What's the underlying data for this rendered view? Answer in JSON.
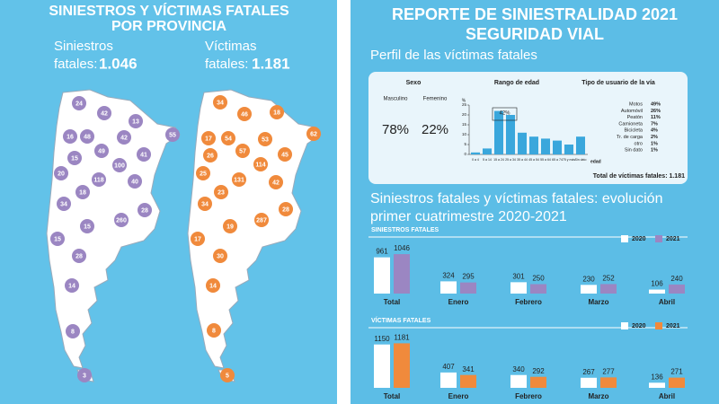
{
  "left": {
    "title_line1": "SINIESTROS Y VÍCTIMAS FATALES",
    "title_line2": "POR PROVINCIA",
    "siniestros_label_1": "Siniestros",
    "siniestros_label_2": "fatales:",
    "siniestros_total": "1.046",
    "victimas_label_1": "Víctimas",
    "victimas_label_2": "fatales:",
    "victimas_total": "1.181",
    "siniestros_map": {
      "color": "#9b86c2",
      "values": [
        24,
        42,
        13,
        16,
        48,
        42,
        55,
        15,
        49,
        41,
        20,
        100,
        118,
        40,
        18,
        34,
        28,
        15,
        260,
        15,
        28,
        14,
        8,
        3
      ]
    },
    "victimas_map": {
      "color": "#f08a3c",
      "values": [
        34,
        46,
        18,
        62,
        17,
        54,
        53,
        26,
        57,
        45,
        114,
        25,
        42,
        131,
        23,
        34,
        28,
        287,
        19,
        17,
        30,
        14,
        8,
        5
      ]
    }
  },
  "right": {
    "title_line1": "REPORTE DE SINIESTRALIDAD 2021",
    "title_line2": "SEGURIDAD VIAL",
    "perfil": "Perfil de las víctimas fatales",
    "sexo": {
      "title": "Sexo",
      "labels": [
        "Masculino",
        "Femenino"
      ],
      "values": [
        78,
        22
      ],
      "value_labels": [
        "78%",
        "22%"
      ]
    },
    "usuario": {
      "title": "Tipo de usuario de la vía",
      "categories": [
        "Motos",
        "Automóvil",
        "Peatón",
        "Camioneta",
        "Bicicleta",
        "Tr. de carga",
        "otro",
        "Sin dato"
      ],
      "values": [
        49,
        26,
        11,
        7,
        4,
        2,
        1,
        1
      ],
      "value_labels": [
        "49%",
        "26%",
        "11%",
        "7%",
        "4%",
        "2%",
        "1%",
        "1%"
      ]
    },
    "total_label": "Total de víctimas fatales: 1.181",
    "evolucion_line1": "Siniestros fatales y víctimas fatales: evolución",
    "evolucion_line2": "primer cuatrimestre 2020-2021"
  },
  "chart_data": [
    {
      "type": "bar",
      "title": "Rango de edad",
      "y_label": "%",
      "x_label": "edad",
      "annotation": "42%",
      "color": "#3aa7dc",
      "categories": [
        "0 a 4",
        "5 a 14",
        "15 a 24",
        "25 a 34",
        "35 a 44",
        "45 a 54",
        "55 a 64",
        "65 a 74",
        "75 y más",
        "Sin dato"
      ],
      "values": [
        1,
        3,
        22,
        20,
        11,
        9,
        8,
        7,
        5,
        9
      ],
      "ylim": [
        0,
        25
      ],
      "yticks": [
        0,
        5,
        10,
        15,
        20,
        25
      ]
    },
    {
      "type": "grouped_bar",
      "title": "SINIESTROS FATALES",
      "categories": [
        "Total",
        "Enero",
        "Febrero",
        "Marzo",
        "Abril"
      ],
      "series": [
        {
          "name": "2020",
          "color": "#ffffff",
          "values": [
            961,
            324,
            301,
            230,
            106
          ]
        },
        {
          "name": "2021",
          "color": "#9b86c2",
          "values": [
            1046,
            295,
            250,
            252,
            240
          ]
        }
      ]
    },
    {
      "type": "grouped_bar",
      "title": "VÍCTIMAS FATALES",
      "categories": [
        "Total",
        "Enero",
        "Febrero",
        "Marzo",
        "Abril"
      ],
      "series": [
        {
          "name": "2020",
          "color": "#ffffff",
          "values": [
            1150,
            407,
            340,
            267,
            136
          ]
        },
        {
          "name": "2021",
          "color": "#f08a3c",
          "values": [
            1181,
            341,
            292,
            277,
            271
          ]
        }
      ]
    }
  ]
}
